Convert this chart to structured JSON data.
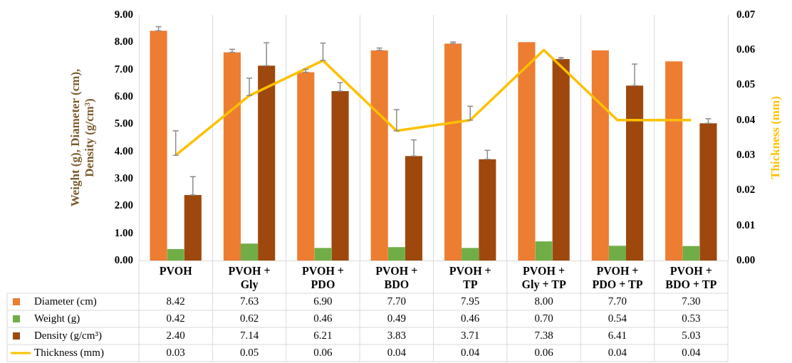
{
  "chart_data": {
    "type": "bar",
    "ylabel": "Weight (g), Diameter (cm), Density (g/cm³)",
    "y2label": "Thickness (mm)",
    "categories": [
      "PVOH",
      "PVOH + Gly",
      "PVOH + PDO",
      "PVOH + BDO",
      "PVOH + TP",
      "PVOH + Gly + TP",
      "PVOH + PDO + TP",
      "PVOH + BDO + TP"
    ],
    "series": [
      {
        "name": "Diameter (cm)",
        "color": "#ed7d31",
        "values": [
          8.42,
          7.63,
          6.9,
          7.7,
          7.95,
          8.0,
          7.7,
          7.3
        ],
        "value_labels": [
          "8.42",
          "7.63",
          "6.90",
          "7.70",
          "7.95",
          "8.00",
          "7.70",
          "7.30"
        ],
        "errors": [
          [
            8.42,
            8.57
          ],
          [
            7.63,
            7.74
          ],
          [
            6.9,
            7.01
          ],
          [
            7.7,
            7.79
          ],
          [
            7.95,
            8.01
          ],
          null,
          null,
          null
        ]
      },
      {
        "name": "Weight (g)",
        "color": "#70ad47",
        "values": [
          0.42,
          0.62,
          0.46,
          0.49,
          0.46,
          0.7,
          0.54,
          0.53
        ],
        "value_labels": [
          "0.42",
          "0.62",
          "0.46",
          "0.49",
          "0.46",
          "0.70",
          "0.54",
          "0.53"
        ]
      },
      {
        "name": "Density (g/cm³)",
        "color": "#9e480e",
        "values": [
          2.4,
          7.14,
          6.21,
          3.83,
          3.71,
          7.38,
          6.41,
          5.03
        ],
        "value_labels": [
          "2.40",
          "7.14",
          "6.21",
          "3.83",
          "3.71",
          "7.38",
          "6.41",
          "5.03"
        ],
        "errors": [
          [
            2.4,
            3.07
          ],
          [
            7.14,
            7.98
          ],
          [
            6.21,
            6.52
          ],
          [
            3.83,
            4.42
          ],
          [
            3.71,
            4.04
          ],
          [
            7.38,
            7.44
          ],
          [
            6.41,
            7.2
          ],
          [
            5.03,
            5.2
          ]
        ]
      },
      {
        "name": "Thickness (mm)",
        "type": "line",
        "axis": "y2",
        "color": "#ffc000",
        "values": [
          0.03,
          0.047,
          0.057,
          0.037,
          0.04,
          0.06,
          0.04,
          0.04
        ],
        "value_labels": [
          "0.03",
          "0.05",
          "0.06",
          "0.04",
          "0.04",
          "0.06",
          "0.04",
          "0.04"
        ],
        "errors": [
          [
            0.03,
            0.037
          ],
          [
            0.047,
            0.052
          ],
          [
            0.057,
            0.062
          ],
          [
            0.037,
            0.043
          ],
          [
            0.04,
            0.044
          ],
          null,
          null,
          null
        ]
      }
    ],
    "ylim": [
      0,
      9
    ],
    "yticks": [
      {
        "value": 0,
        "label": "0.00"
      },
      {
        "value": 1,
        "label": "1.00"
      },
      {
        "value": 2,
        "label": "2.00"
      },
      {
        "value": 3,
        "label": "3.00"
      },
      {
        "value": 4,
        "label": "4.00"
      },
      {
        "value": 5,
        "label": "5.00"
      },
      {
        "value": 6,
        "label": "6.00"
      },
      {
        "value": 7,
        "label": "7.00"
      },
      {
        "value": 8,
        "label": "8.00"
      },
      {
        "value": 9,
        "label": "9.00"
      }
    ],
    "y2lim": [
      0,
      0.07
    ],
    "y2ticks": [
      {
        "value": 0,
        "label": "0.00"
      },
      {
        "value": 0.01,
        "label": "0.01"
      },
      {
        "value": 0.02,
        "label": "0.02"
      },
      {
        "value": 0.03,
        "label": "0.03"
      },
      {
        "value": 0.04,
        "label": "0.04"
      },
      {
        "value": 0.05,
        "label": "0.05"
      },
      {
        "value": 0.06,
        "label": "0.06"
      },
      {
        "value": 0.07,
        "label": "0.07"
      }
    ],
    "grid": "x",
    "legend": "bottom",
    "marker": "none"
  }
}
